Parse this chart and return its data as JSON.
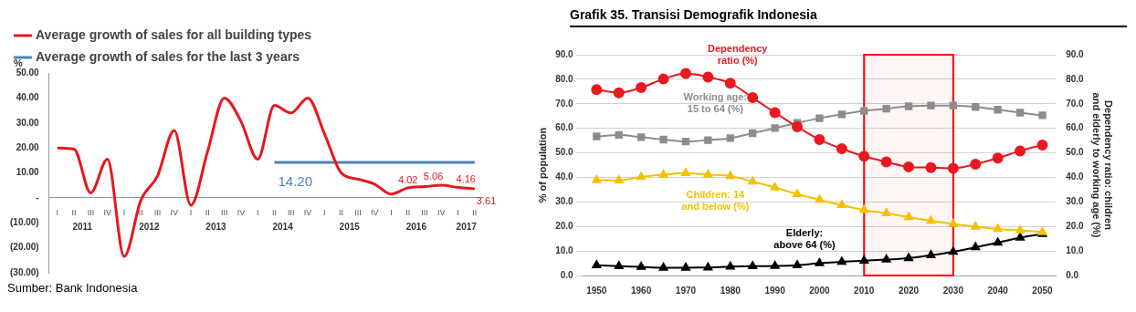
{
  "chart_data": [
    {
      "type": "line",
      "ylabel": "%",
      "categories": [
        "I",
        "II",
        "III",
        "IV",
        "I",
        "II",
        "III",
        "IV",
        "I",
        "II",
        "III",
        "IV",
        "I",
        "II",
        "III",
        "IV",
        "I",
        "II",
        "III",
        "IV",
        "I",
        "II",
        "III",
        "IV",
        "I",
        "II"
      ],
      "series": [
        {
          "name": "Average growth of sales for all building types",
          "color": "#e8161e",
          "values": [
            20,
            19.5,
            2,
            15.5,
            -23.5,
            -1,
            8.8,
            27,
            -3,
            18.6,
            40,
            30.6,
            15.5,
            37,
            34,
            40,
            25.7,
            10,
            7.5,
            5.5,
            1.5,
            4.02,
            4.5,
            5.06,
            4.16,
            3.61
          ],
          "value_labels": [
            null,
            null,
            null,
            null,
            null,
            null,
            null,
            null,
            null,
            null,
            null,
            null,
            null,
            null,
            null,
            null,
            null,
            null,
            null,
            null,
            null,
            "4.02",
            null,
            "5.06",
            "4.16",
            "3.61"
          ]
        },
        {
          "name": "Average growth of sales for the last 3 years",
          "color": "#4f81bd",
          "values": [
            null,
            null,
            null,
            null,
            null,
            null,
            null,
            null,
            null,
            null,
            null,
            null,
            null,
            14.2,
            14.2,
            14.2,
            14.2,
            14.2,
            14.2,
            14.2,
            14.2,
            14.2,
            14.2,
            14.2,
            14.2,
            14.2
          ],
          "value_labels": [
            null,
            null,
            null,
            null,
            null,
            null,
            null,
            null,
            null,
            null,
            null,
            null,
            null,
            "14.20",
            null,
            null,
            null,
            null,
            null,
            null,
            null,
            null,
            null,
            null,
            null,
            null
          ]
        }
      ],
      "ylim": [
        -30,
        50
      ],
      "yticks": [
        {
          "value": -30,
          "label": "(30.00)"
        },
        {
          "value": -20,
          "label": "(20.00)"
        },
        {
          "value": -10,
          "label": "(10.00)"
        },
        {
          "value": 0,
          "label": "-"
        },
        {
          "value": 10,
          "label": "10.00"
        },
        {
          "value": 20,
          "label": "20.00"
        },
        {
          "value": 30,
          "label": "30.00"
        },
        {
          "value": 40,
          "label": "40.00"
        },
        {
          "value": 50,
          "label": "50.00"
        }
      ],
      "legend": "top",
      "marker": "none",
      "annotations": [
        "2011",
        "2012",
        "2013",
        "2014",
        "2015",
        "2016",
        "2017",
        "Sumber: Bank Indonesia"
      ]
    },
    {
      "type": "line",
      "title": "Grafik 35. Transisi Demografik Indonesia",
      "ylabel": "% of population",
      "y2label": "Dependency ratio: children and elderly to working age (%)",
      "x": [
        1950,
        1955,
        1960,
        1965,
        1970,
        1975,
        1980,
        1985,
        1990,
        1995,
        2000,
        2005,
        2010,
        2015,
        2020,
        2025,
        2030,
        2035,
        2040,
        2045,
        2050
      ],
      "xlim": [
        1947,
        2053
      ],
      "xticks": [
        1950,
        1960,
        1970,
        1980,
        1990,
        2000,
        2010,
        2020,
        2030,
        2040,
        2050
      ],
      "ylim": [
        0,
        90
      ],
      "yticks": [
        {
          "value": 0,
          "label": "0.0"
        },
        {
          "value": 10,
          "label": "10.0"
        },
        {
          "value": 20,
          "label": "20.0"
        },
        {
          "value": 30,
          "label": "30.0"
        },
        {
          "value": 40,
          "label": "40.0"
        },
        {
          "value": 50,
          "label": "50.0"
        },
        {
          "value": 60,
          "label": "60.0"
        },
        {
          "value": 70,
          "label": "70.0"
        },
        {
          "value": 80,
          "label": "80.0"
        },
        {
          "value": 90,
          "label": "90.0"
        }
      ],
      "y2lim": [
        0,
        90
      ],
      "y2ticks": [
        {
          "value": 0,
          "label": "0.0"
        },
        {
          "value": 10,
          "label": "10.0"
        },
        {
          "value": 20,
          "label": "20.0"
        },
        {
          "value": 30,
          "label": "30.0"
        },
        {
          "value": 40,
          "label": "40.0"
        },
        {
          "value": 50,
          "label": "50.0"
        },
        {
          "value": 60,
          "label": "60.0"
        },
        {
          "value": 70,
          "label": "70.0"
        },
        {
          "value": 80,
          "label": "80.0"
        },
        {
          "value": 90,
          "label": "90.0"
        }
      ],
      "grid": "y",
      "legend": false,
      "bands": [
        {
          "axis": "x",
          "from": 2010,
          "to": 2030,
          "color": "#ff0000"
        }
      ],
      "series": [
        {
          "name": "Dependency ratio (%)",
          "color": "#e8191f",
          "marker": "circle",
          "values": [
            75.8,
            74.5,
            76.6,
            80.1,
            82.4,
            80.9,
            78.4,
            72.5,
            66.4,
            60.6,
            55.4,
            51.7,
            48.6,
            46.3,
            44.3,
            44.0,
            43.7,
            45.4,
            47.9,
            50.8,
            53.2
          ]
        },
        {
          "name": "Working age: 15 to 64 (%)",
          "color": "#8c8c8c",
          "marker": "square",
          "values": [
            56.7,
            57.3,
            56.4,
            55.4,
            54.6,
            55.2,
            56.0,
            58.0,
            60.1,
            62.2,
            64.1,
            65.7,
            67.1,
            68.0,
            69.0,
            69.3,
            69.3,
            68.7,
            67.6,
            66.4,
            65.3
          ]
        },
        {
          "name": "Children: 14 and below (%)",
          "color": "#f5c000",
          "marker": "triangle",
          "values": [
            38.9,
            38.8,
            40.2,
            41.1,
            41.7,
            41.1,
            40.5,
            38.3,
            35.9,
            33.2,
            30.9,
            28.7,
            26.7,
            25.4,
            23.8,
            22.3,
            21.0,
            19.9,
            19.0,
            18.4,
            17.7
          ]
        },
        {
          "name": "Elderly: above 64 (%)",
          "color": "#000000",
          "marker": "triangle",
          "values": [
            4.2,
            3.8,
            3.5,
            3.2,
            3.2,
            3.3,
            3.6,
            3.8,
            3.9,
            4.2,
            5.0,
            5.6,
            6.0,
            6.5,
            7.1,
            8.3,
            9.7,
            11.5,
            13.4,
            15.4,
            16.9
          ]
        }
      ]
    }
  ]
}
